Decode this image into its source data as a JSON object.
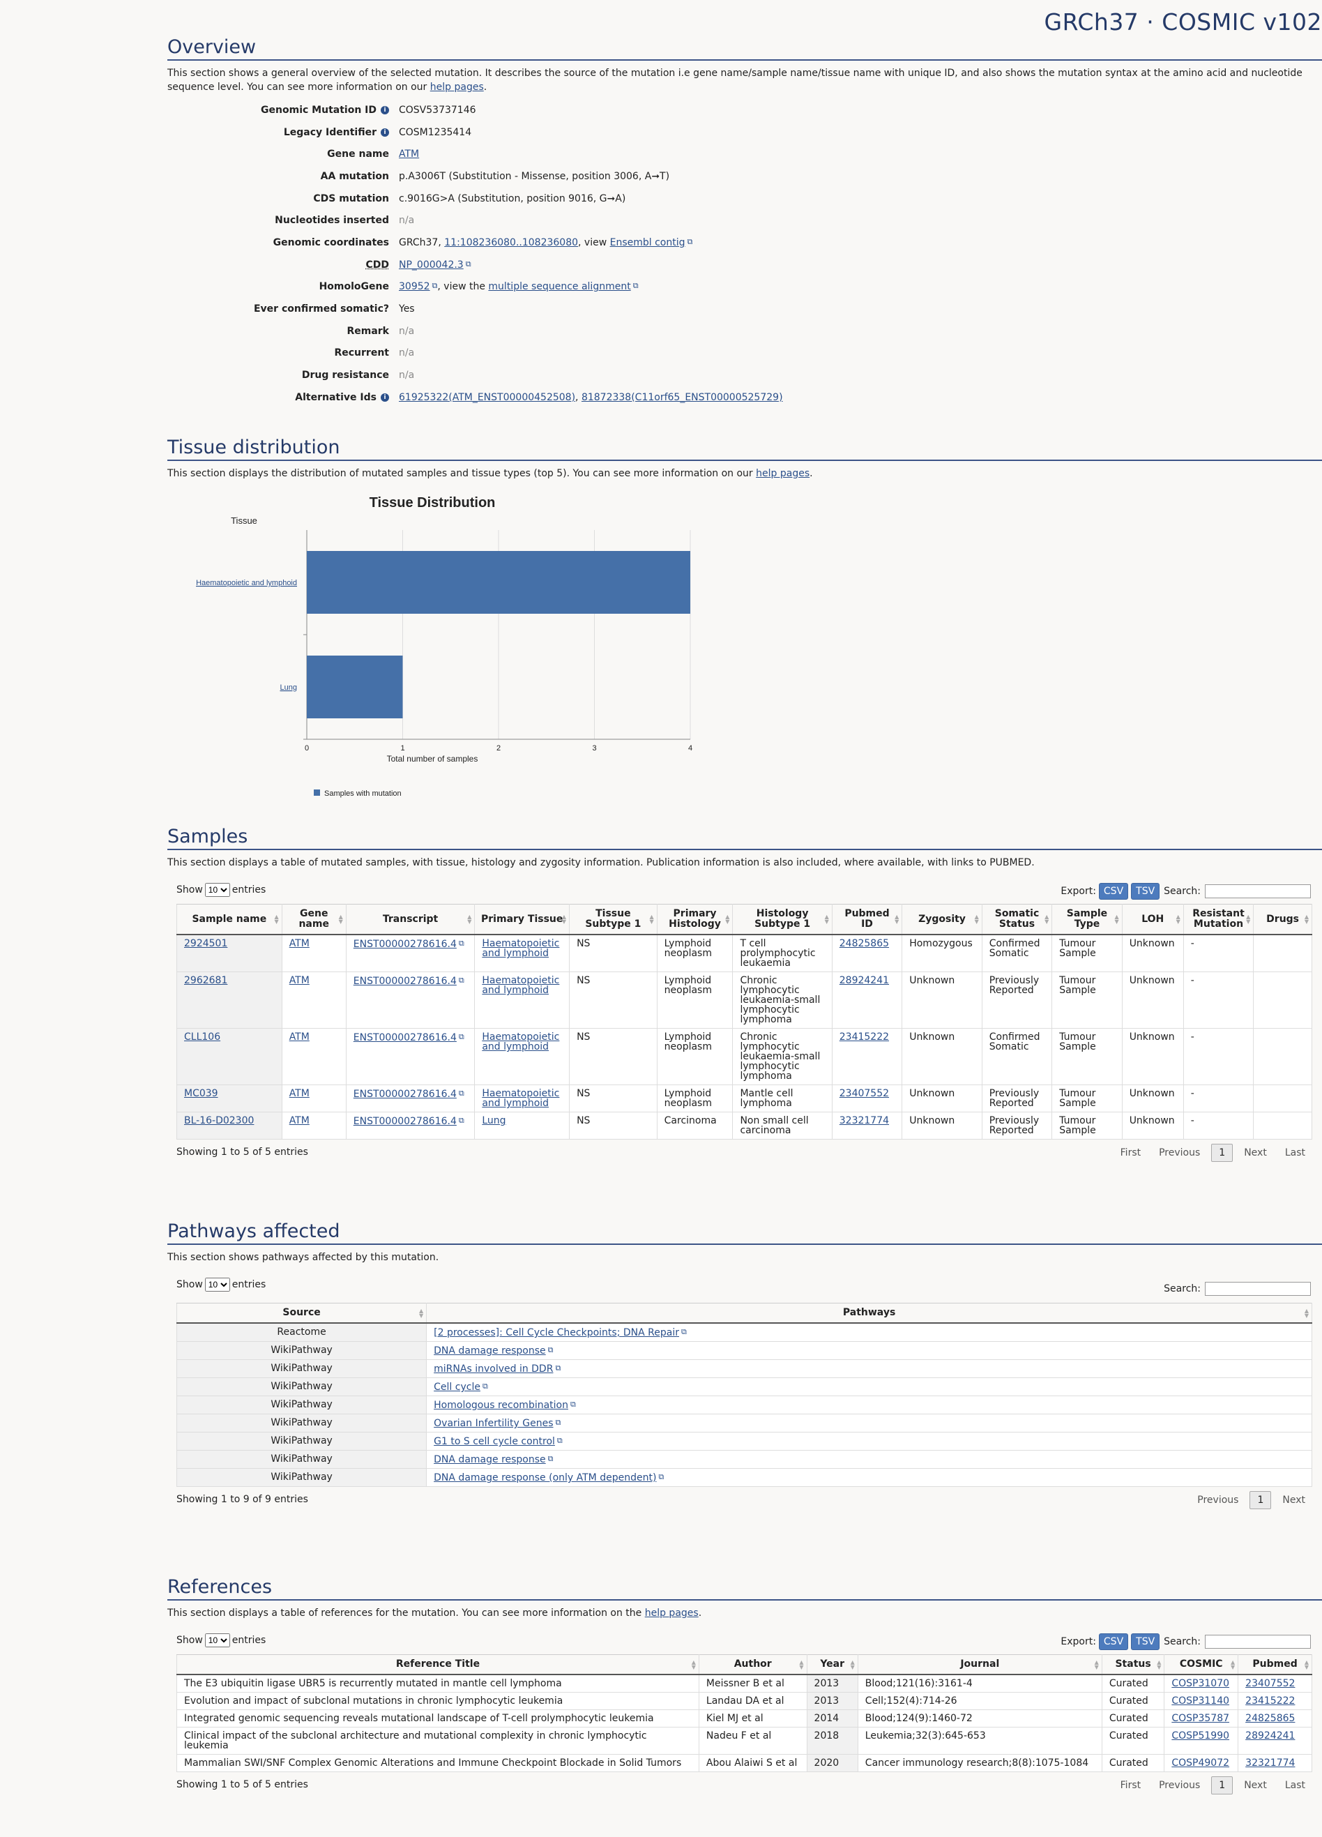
{
  "header": {
    "title": "GRCh37 · COSMIC v102"
  },
  "overview": {
    "heading": "Overview",
    "desc_pre": "This section shows a general overview of the selected mutation. It describes the source of the mutation i.e gene name/sample name/tissue name with unique ID, and also shows the mutation syntax at the amino acid and nucleotide sequence level. You can see more information on our ",
    "desc_link": "help pages",
    "desc_post": ".",
    "rows": {
      "genomic_mutation_id": {
        "label": "Genomic Mutation ID",
        "value": "COSV53737146"
      },
      "legacy_identifier": {
        "label": "Legacy Identifier",
        "value": "COSM1235414"
      },
      "gene_name": {
        "label": "Gene name",
        "value": "ATM"
      },
      "aa_mutation": {
        "label": "AA mutation",
        "value": "p.A3006T (Substitution - Missense, position 3006, A➞T)"
      },
      "cds_mutation": {
        "label": "CDS mutation",
        "value": "c.9016G>A (Substitution, position 9016, G➞A)"
      },
      "nucleotides_inserted": {
        "label": "Nucleotides inserted",
        "value": "n/a"
      },
      "genomic_coordinates": {
        "label": "Genomic coordinates",
        "prefix": "GRCh37, ",
        "link": "11:108236080..108236080",
        "mid": ", view ",
        "link2": "Ensembl contig"
      },
      "cdd": {
        "label": "CDD",
        "link": "NP_000042.3"
      },
      "homologene": {
        "label": "HomoloGene",
        "link": "30952",
        "mid": ", view the ",
        "link2": "multiple sequence alignment"
      },
      "ever_confirmed": {
        "label": "Ever confirmed somatic?",
        "value": "Yes"
      },
      "remark": {
        "label": "Remark",
        "value": "n/a"
      },
      "recurrent": {
        "label": "Recurrent",
        "value": "n/a"
      },
      "drug_resistance": {
        "label": "Drug resistance",
        "value": "n/a"
      },
      "alternative_ids": {
        "label": "Alternative Ids",
        "link": "61925322(ATM_ENST00000452508)",
        "sep": ", ",
        "link2": "81872338(C11orf65_ENST00000525729)"
      }
    }
  },
  "tissue": {
    "heading": "Tissue distribution",
    "desc_pre": "This section displays the distribution of mutated samples and tissue types (top 5). You can see more information on our ",
    "desc_link": "help pages",
    "desc_post": "."
  },
  "chart_data": {
    "type": "bar",
    "orientation": "horizontal",
    "title": "Tissue Distribution",
    "ylabel": "Tissue",
    "xlabel": "Total number of samples",
    "categories": [
      "Haematopoietic and lymphoid",
      "Lung"
    ],
    "series": [
      {
        "name": "Samples with mutation",
        "values": [
          4,
          1
        ]
      }
    ],
    "xlim": [
      0,
      4
    ],
    "xticks": [
      "0",
      "1",
      "2",
      "3",
      "4"
    ],
    "grid": true,
    "legend": "bottom-left",
    "color": "#4570a8"
  },
  "samples": {
    "heading": "Samples",
    "desc": "This section displays a table of mutated samples, with tissue, histology and zygosity information. Publication information is also included, where available, with links to PUBMED.",
    "show_pre": "Show",
    "show_value": "10",
    "show_post": "entries",
    "export_label": "Export:",
    "csv": "CSV",
    "tsv": "TSV",
    "search_label": "Search:",
    "columns": [
      "Sample name",
      "Gene name",
      "Transcript",
      "Primary Tissue",
      "Tissue Subtype 1",
      "Primary Histology",
      "Histology Subtype 1",
      "Pubmed ID",
      "Zygosity",
      "Somatic Status",
      "Sample Type",
      "LOH",
      "Resistant Mutation",
      "Drugs"
    ],
    "rows": [
      [
        "2924501",
        "ATM",
        "ENST00000278616.4",
        "Haematopoietic and lymphoid",
        "NS",
        "Lymphoid neoplasm",
        "T cell prolymphocytic leukaemia",
        "24825865",
        "Homozygous",
        "Confirmed Somatic",
        "Tumour Sample",
        "Unknown",
        "-",
        ""
      ],
      [
        "2962681",
        "ATM",
        "ENST00000278616.4",
        "Haematopoietic and lymphoid",
        "NS",
        "Lymphoid neoplasm",
        "Chronic lymphocytic leukaemia-small lymphocytic lymphoma",
        "28924241",
        "Unknown",
        "Previously Reported",
        "Tumour Sample",
        "Unknown",
        "-",
        ""
      ],
      [
        "CLL106",
        "ATM",
        "ENST00000278616.4",
        "Haematopoietic and lymphoid",
        "NS",
        "Lymphoid neoplasm",
        "Chronic lymphocytic leukaemia-small lymphocytic lymphoma",
        "23415222",
        "Unknown",
        "Confirmed Somatic",
        "Tumour Sample",
        "Unknown",
        "-",
        ""
      ],
      [
        "MC039",
        "ATM",
        "ENST00000278616.4",
        "Haematopoietic and lymphoid",
        "NS",
        "Lymphoid neoplasm",
        "Mantle cell lymphoma",
        "23407552",
        "Unknown",
        "Previously Reported",
        "Tumour Sample",
        "Unknown",
        "-",
        ""
      ],
      [
        "BL-16-D02300",
        "ATM",
        "ENST00000278616.4",
        "Lung",
        "NS",
        "Carcinoma",
        "Non small cell carcinoma",
        "32321774",
        "Unknown",
        "Previously Reported",
        "Tumour Sample",
        "Unknown",
        "-",
        ""
      ]
    ],
    "info": "Showing 1 to 5 of 5 entries",
    "pager": {
      "first": "First",
      "prev": "Previous",
      "page": "1",
      "next": "Next",
      "last": "Last"
    }
  },
  "pathways": {
    "heading": "Pathways affected",
    "desc": "This section shows pathways affected by this mutation.",
    "show_pre": "Show",
    "show_value": "10",
    "show_post": "entries",
    "search_label": "Search:",
    "columns": [
      "Source",
      "Pathways"
    ],
    "rows": [
      [
        "Reactome",
        "[2 processes]: Cell Cycle Checkpoints; DNA Repair"
      ],
      [
        "WikiPathway",
        "DNA damage response"
      ],
      [
        "WikiPathway",
        "miRNAs involved in DDR"
      ],
      [
        "WikiPathway",
        "Cell cycle"
      ],
      [
        "WikiPathway",
        "Homologous recombination"
      ],
      [
        "WikiPathway",
        "Ovarian Infertility Genes"
      ],
      [
        "WikiPathway",
        "G1 to S cell cycle control"
      ],
      [
        "WikiPathway",
        "DNA damage response"
      ],
      [
        "WikiPathway",
        "DNA damage response (only ATM dependent)"
      ]
    ],
    "info": "Showing 1 to 9 of 9 entries",
    "pager": {
      "prev": "Previous",
      "page": "1",
      "next": "Next"
    }
  },
  "references": {
    "heading": "References",
    "desc_pre": "This section displays a table of references for the mutation. You can see more information on the ",
    "desc_link": "help pages",
    "desc_post": ".",
    "show_pre": "Show",
    "show_value": "10",
    "show_post": "entries",
    "export_label": "Export:",
    "csv": "CSV",
    "tsv": "TSV",
    "search_label": "Search:",
    "columns": [
      "Reference Title",
      "Author",
      "Year",
      "Journal",
      "Status",
      "COSMIC",
      "Pubmed"
    ],
    "rows": [
      [
        "The E3 ubiquitin ligase UBR5 is recurrently mutated in mantle cell lymphoma",
        "Meissner B et al",
        "2013",
        "Blood;121(16):3161-4",
        "Curated",
        "COSP31070",
        "23407552"
      ],
      [
        "Evolution and impact of subclonal mutations in chronic lymphocytic leukemia",
        "Landau DA et al",
        "2013",
        "Cell;152(4):714-26",
        "Curated",
        "COSP31140",
        "23415222"
      ],
      [
        "Integrated genomic sequencing reveals mutational landscape of T-cell prolymphocytic leukemia",
        "Kiel MJ et al",
        "2014",
        "Blood;124(9):1460-72",
        "Curated",
        "COSP35787",
        "24825865"
      ],
      [
        "Clinical impact of the subclonal architecture and mutational complexity in chronic lymphocytic leukemia",
        "Nadeu F et al",
        "2018",
        "Leukemia;32(3):645-653",
        "Curated",
        "COSP51990",
        "28924241"
      ],
      [
        "Mammalian SWI/SNF Complex Genomic Alterations and Immune Checkpoint Blockade in Solid Tumors",
        "Abou Alaiwi S et al",
        "2020",
        "Cancer immunology research;8(8):1075-1084",
        "Curated",
        "COSP49072",
        "32321774"
      ]
    ],
    "info": "Showing 1 to 5 of 5 entries",
    "pager": {
      "first": "First",
      "prev": "Previous",
      "page": "1",
      "next": "Next",
      "last": "Last"
    }
  }
}
